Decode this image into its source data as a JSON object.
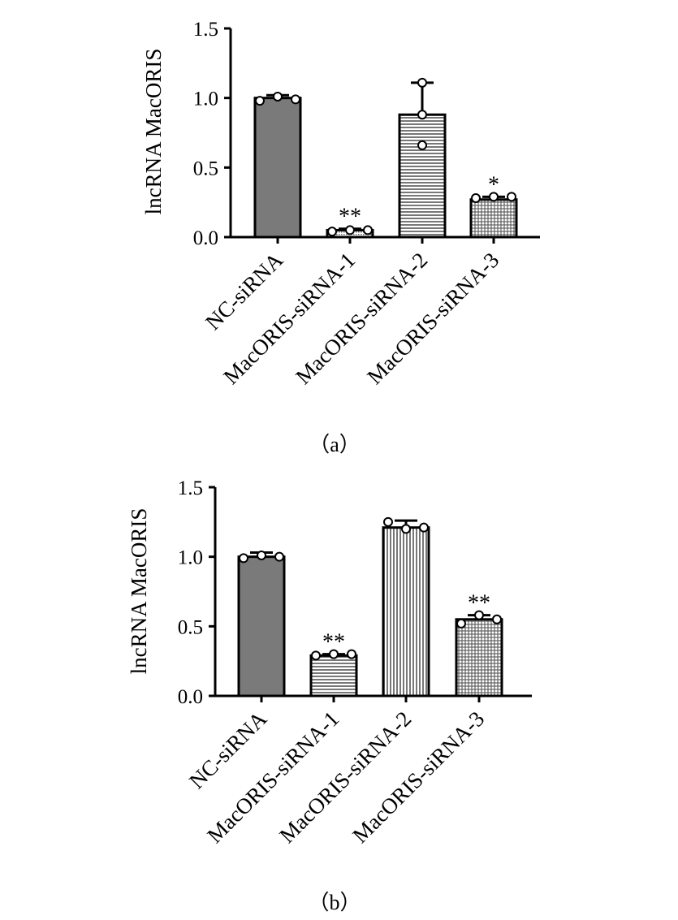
{
  "chart_data": [
    {
      "type": "bar",
      "panel_label": "（a）",
      "ylabel": "lncRNA MacORIS",
      "ylim": [
        0,
        1.5
      ],
      "yticks": [
        "0.0",
        "0.5",
        "1.0",
        "1.5"
      ],
      "categories": [
        "NC-siRNA",
        "MacORIS-siRNA-1",
        "MacORIS-siRNA-2",
        "MacORIS-siRNA-3"
      ],
      "values": [
        1.0,
        0.05,
        0.88,
        0.27
      ],
      "error_upper": [
        1.02,
        0.06,
        1.11,
        0.29
      ],
      "points": [
        [
          0.98,
          1.01,
          0.99
        ],
        [
          0.04,
          0.05,
          0.05
        ],
        [
          0.66,
          0.88,
          1.11
        ],
        [
          0.28,
          0.29,
          0.29
        ]
      ],
      "annotations": [
        "",
        "**",
        "",
        "*"
      ],
      "patterns": [
        "solid",
        "dots",
        "hlines",
        "grid"
      ],
      "colors": {
        "bar_solid": "#7a7a7a",
        "outline": "#000000"
      }
    },
    {
      "type": "bar",
      "panel_label": "（b）",
      "ylabel": "lncRNA MacORIS",
      "ylim": [
        0,
        1.5
      ],
      "yticks": [
        "0.0",
        "0.5",
        "1.0",
        "1.5"
      ],
      "categories": [
        "NC-siRNA",
        "MacORIS-siRNA-1",
        "MacORIS-siRNA-2",
        "MacORIS-siRNA-3"
      ],
      "values": [
        1.0,
        0.29,
        1.21,
        0.55
      ],
      "error_upper": [
        1.03,
        0.3,
        1.26,
        0.58
      ],
      "points": [
        [
          0.99,
          1.01,
          1.0
        ],
        [
          0.29,
          0.3,
          0.3
        ],
        [
          1.25,
          1.2,
          1.21
        ],
        [
          0.52,
          0.58,
          0.55
        ]
      ],
      "annotations": [
        "",
        "**",
        "",
        "**"
      ],
      "patterns": [
        "solid",
        "hlines",
        "vlines",
        "grid"
      ],
      "colors": {
        "bar_solid": "#7a7a7a",
        "outline": "#000000"
      }
    }
  ]
}
